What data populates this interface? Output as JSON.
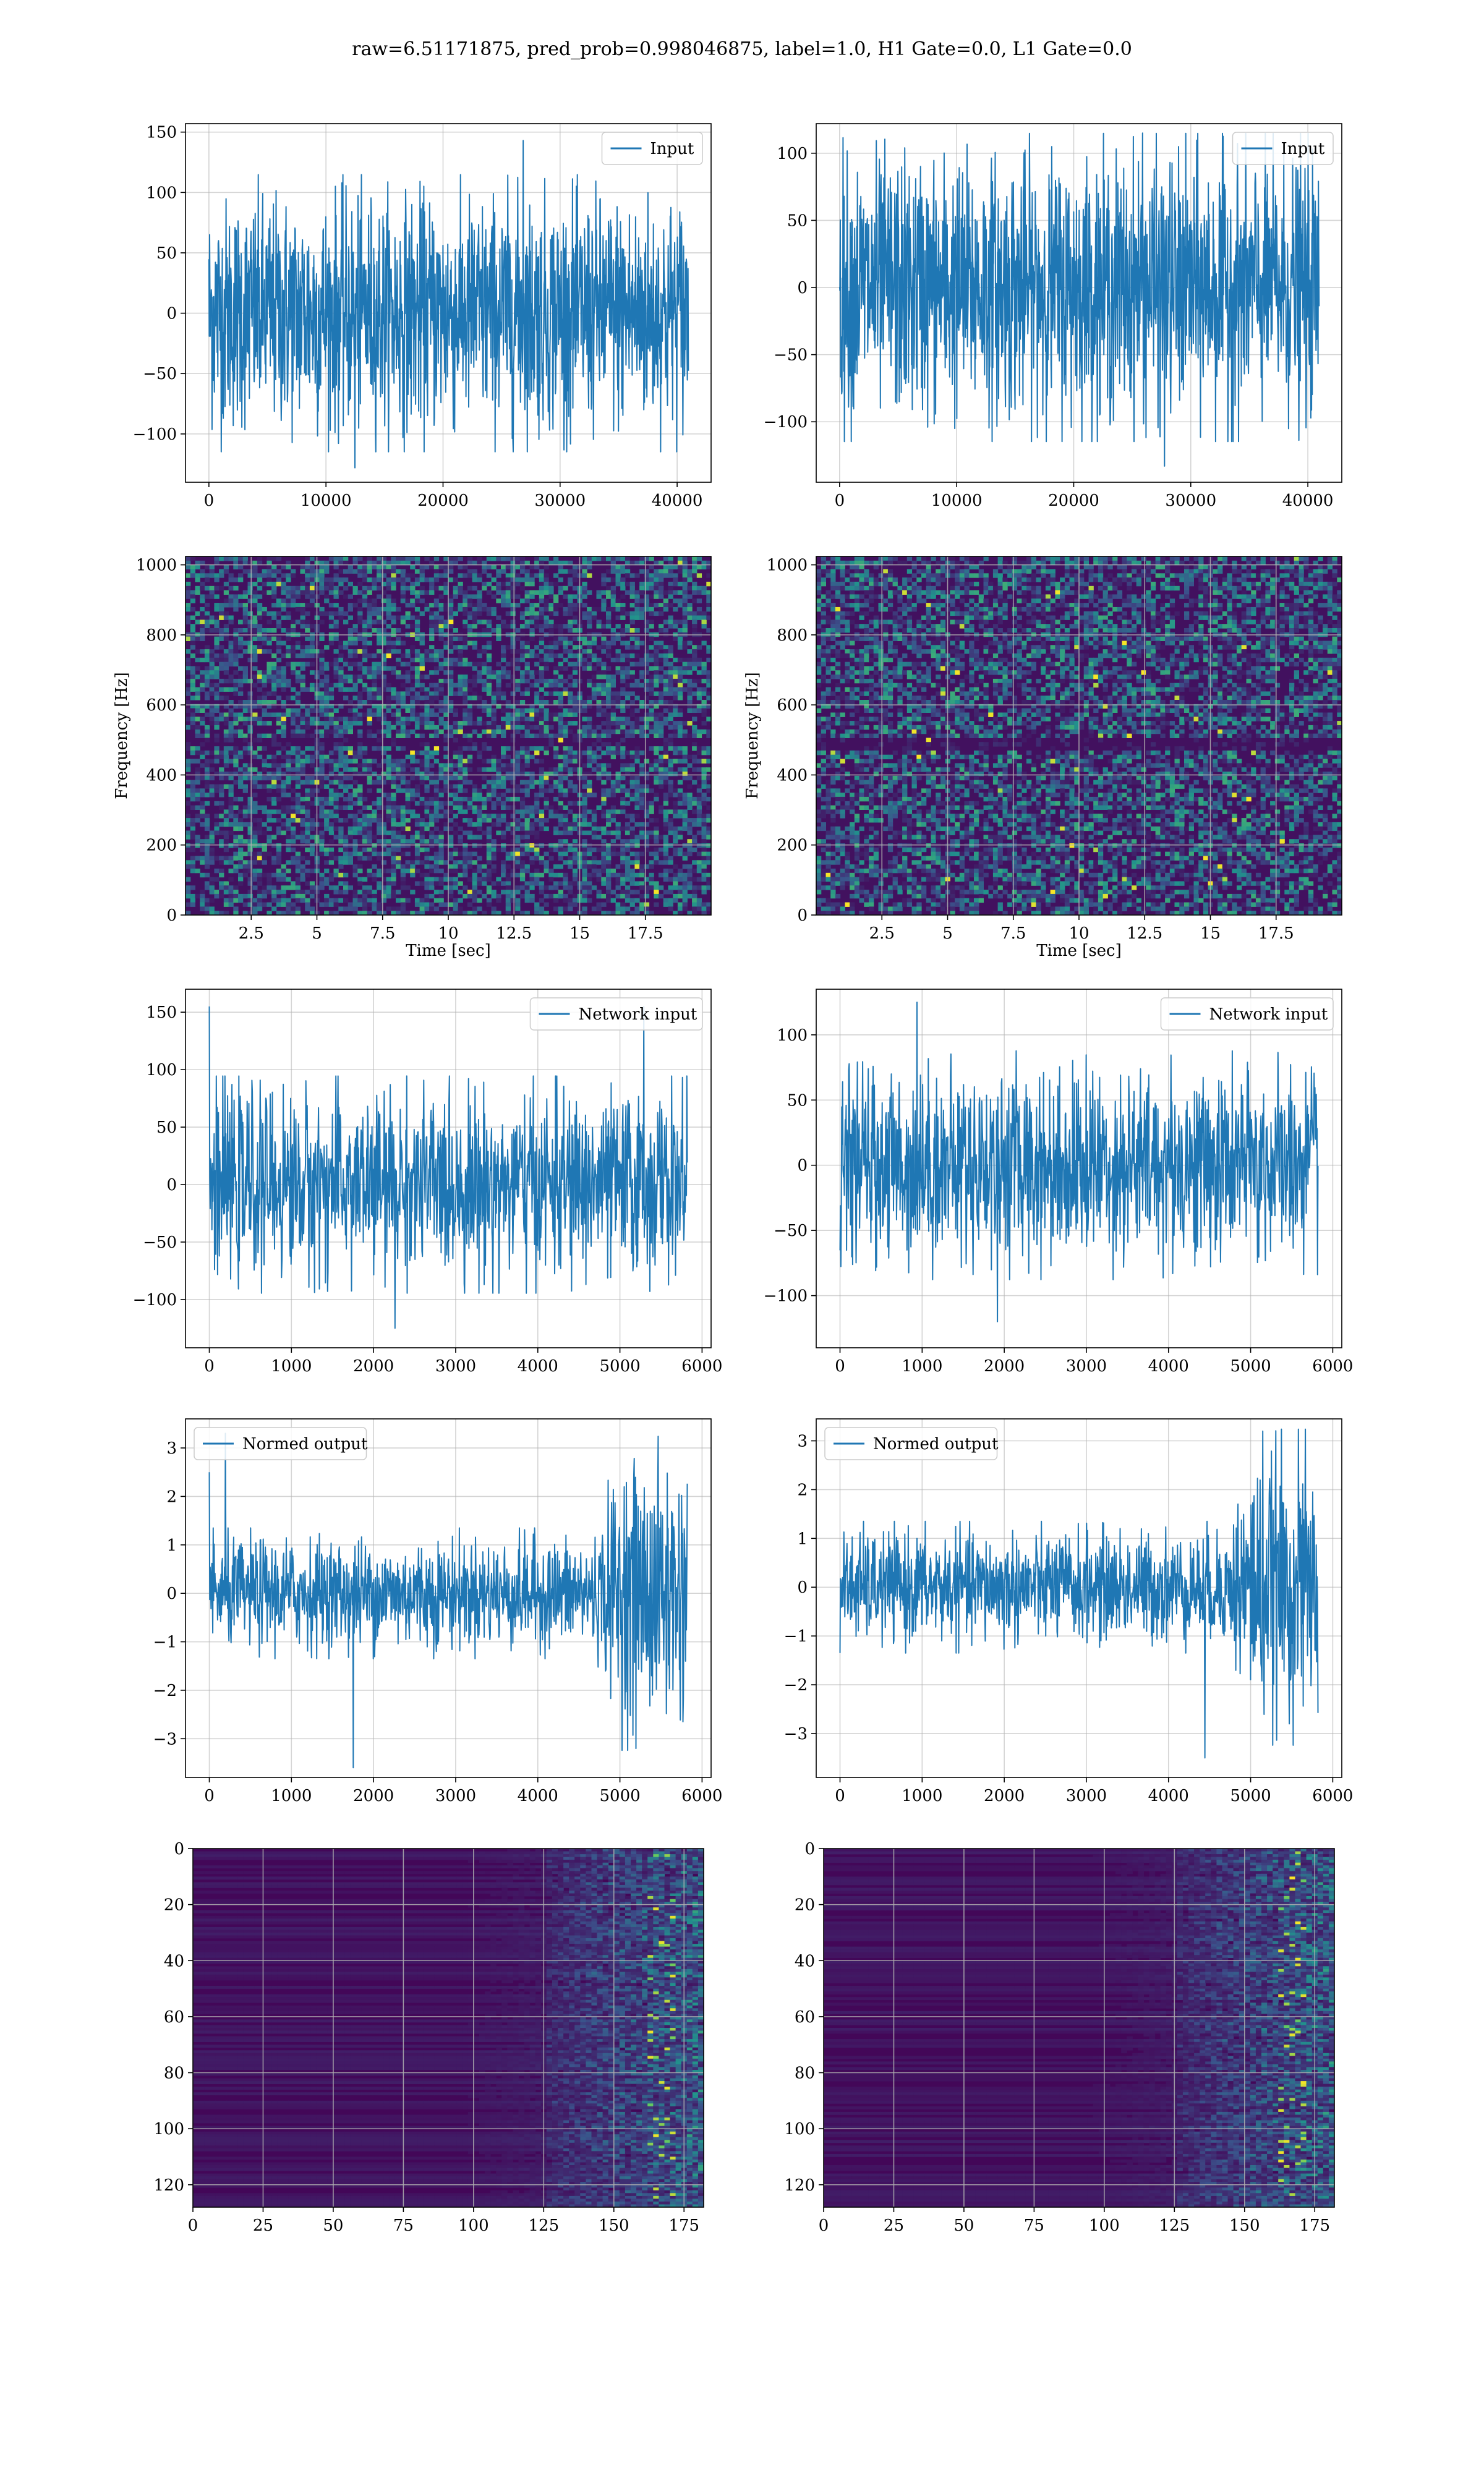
{
  "figure_title": "raw=6.51171875, pred_prob=0.998046875, label=1.0, H1 Gate=0.0, L1 Gate=0.0",
  "colors": {
    "series": "#1f77b4",
    "grid": "#b0b0b0",
    "viridis_low": "#440154",
    "viridis_mid": "#3b528b",
    "viridis_high": "#fde725"
  },
  "chart_data": [
    {
      "id": "input-h1",
      "type": "line",
      "title": "",
      "xlabel": "",
      "ylabel": "",
      "legend": {
        "labels": [
          "Input"
        ],
        "placement": "top-right"
      },
      "grid": true,
      "xlim": [
        -2000,
        42900
      ],
      "ylim": [
        -140,
        157
      ],
      "xticks": [
        0,
        10000,
        20000,
        30000,
        40000
      ],
      "yticks": [
        -100,
        -50,
        0,
        50,
        100,
        150
      ],
      "series": [
        {
          "name": "Input",
          "x_range": [
            0,
            40960
          ],
          "n_points": 1400,
          "envelope_upper": 85,
          "envelope_lower": -85,
          "peak_max": 143,
          "peak_min": -128
        }
      ]
    },
    {
      "id": "input-l1",
      "type": "line",
      "title": "",
      "xlabel": "",
      "ylabel": "",
      "legend": {
        "labels": [
          "Input"
        ],
        "placement": "top-right"
      },
      "grid": true,
      "xlim": [
        -2000,
        42900
      ],
      "ylim": [
        -145,
        122
      ],
      "xticks": [
        0,
        10000,
        20000,
        30000,
        40000
      ],
      "yticks": [
        -100,
        -50,
        0,
        50,
        100
      ],
      "series": [
        {
          "name": "Input",
          "x_range": [
            0,
            40960
          ],
          "n_points": 1400,
          "envelope_upper": 85,
          "envelope_lower": -85,
          "peak_max": 115,
          "peak_min": -133
        }
      ]
    },
    {
      "id": "spec-h1",
      "type": "heatmap",
      "title": "",
      "xlabel": "Time [sec]",
      "ylabel": "Frequency [Hz]",
      "grid": true,
      "xlim": [
        0,
        20
      ],
      "ylim": [
        0,
        1024
      ],
      "xticks": [
        2.5,
        5.0,
        7.5,
        10.0,
        12.5,
        15.0,
        17.5
      ],
      "yticks": [
        0,
        200,
        400,
        600,
        800,
        1000
      ],
      "colormap": "viridis",
      "band_dark_hz": [
        480,
        510
      ]
    },
    {
      "id": "spec-l1",
      "type": "heatmap",
      "title": "",
      "xlabel": "Time [sec]",
      "ylabel": "Frequency [Hz]",
      "grid": true,
      "xlim": [
        0,
        20
      ],
      "ylim": [
        0,
        1024
      ],
      "xticks": [
        2.5,
        5.0,
        7.5,
        10.0,
        12.5,
        15.0,
        17.5
      ],
      "yticks": [
        0,
        200,
        400,
        600,
        800,
        1000
      ],
      "colormap": "viridis",
      "band_dark_hz": [
        470,
        510
      ]
    },
    {
      "id": "netinput-h1",
      "type": "line",
      "title": "",
      "xlabel": "",
      "ylabel": "",
      "legend": {
        "labels": [
          "Network input"
        ],
        "placement": "top-right"
      },
      "grid": true,
      "xlim": [
        -290,
        6110
      ],
      "ylim": [
        -142,
        170
      ],
      "xticks": [
        0,
        1000,
        2000,
        3000,
        4000,
        5000,
        6000
      ],
      "yticks": [
        -100,
        -50,
        0,
        50,
        100,
        150
      ],
      "series": [
        {
          "name": "Network input",
          "x_range": [
            0,
            5820
          ],
          "n_points": 1100,
          "envelope_upper": 70,
          "envelope_lower": -70,
          "peak_max": 155,
          "peak_min": -125
        }
      ]
    },
    {
      "id": "netinput-l1",
      "type": "line",
      "title": "",
      "xlabel": "",
      "ylabel": "",
      "legend": {
        "labels": [
          "Network input"
        ],
        "placement": "top-right"
      },
      "grid": true,
      "xlim": [
        -290,
        6110
      ],
      "ylim": [
        -140,
        135
      ],
      "xticks": [
        0,
        1000,
        2000,
        3000,
        4000,
        5000,
        6000
      ],
      "yticks": [
        -100,
        -50,
        0,
        50,
        100
      ],
      "series": [
        {
          "name": "Network input",
          "x_range": [
            0,
            5820
          ],
          "n_points": 1100,
          "envelope_upper": 65,
          "envelope_lower": -65,
          "peak_max": 125,
          "peak_min": -120
        }
      ]
    },
    {
      "id": "normed-h1",
      "type": "line",
      "title": "",
      "xlabel": "",
      "ylabel": "",
      "legend": {
        "labels": [
          "Normed output"
        ],
        "placement": "top-left"
      },
      "grid": true,
      "xlim": [
        -290,
        6110
      ],
      "ylim": [
        -3.8,
        3.6
      ],
      "xticks": [
        0,
        1000,
        2000,
        3000,
        4000,
        5000,
        6000
      ],
      "yticks": [
        -3,
        -2,
        -1,
        0,
        1,
        2,
        3
      ],
      "series": [
        {
          "name": "Normed output",
          "x_range": [
            0,
            5820
          ],
          "n_points": 1100,
          "envelope_upper": 1.0,
          "envelope_lower": -1.0,
          "burst_range": [
            4700,
            5820
          ],
          "burst_amp": 2.4,
          "peak_max": 3.3,
          "peak_min": -3.6
        }
      ]
    },
    {
      "id": "normed-l1",
      "type": "line",
      "title": "",
      "xlabel": "",
      "ylabel": "",
      "legend": {
        "labels": [
          "Normed output"
        ],
        "placement": "top-left"
      },
      "grid": true,
      "xlim": [
        -290,
        6110
      ],
      "ylim": [
        -3.9,
        3.45
      ],
      "xticks": [
        0,
        1000,
        2000,
        3000,
        4000,
        5000,
        6000
      ],
      "yticks": [
        -3,
        -2,
        -1,
        0,
        1,
        2,
        3
      ],
      "series": [
        {
          "name": "Normed output",
          "x_range": [
            0,
            5820
          ],
          "n_points": 1100,
          "envelope_upper": 1.0,
          "envelope_lower": -1.0,
          "burst_range": [
            4700,
            5820
          ],
          "burst_amp": 2.4,
          "peak_max": 3.2,
          "peak_min": -3.5
        }
      ]
    },
    {
      "id": "feat-h1",
      "type": "heatmap",
      "title": "",
      "xlabel": "",
      "ylabel": "",
      "grid": true,
      "xlim": [
        0,
        182
      ],
      "ylim": [
        128,
        0
      ],
      "xticks": [
        0,
        25,
        50,
        75,
        100,
        125,
        150,
        175
      ],
      "yticks": [
        0,
        20,
        40,
        60,
        80,
        100,
        120
      ],
      "colormap": "viridis",
      "rows": 128,
      "cols": 182,
      "active_from_col": 125
    },
    {
      "id": "feat-l1",
      "type": "heatmap",
      "title": "",
      "xlabel": "",
      "ylabel": "",
      "grid": true,
      "xlim": [
        0,
        182
      ],
      "ylim": [
        128,
        0
      ],
      "xticks": [
        0,
        25,
        50,
        75,
        100,
        125,
        150,
        175
      ],
      "yticks": [
        0,
        20,
        40,
        60,
        80,
        100,
        120
      ],
      "colormap": "viridis",
      "rows": 128,
      "cols": 182,
      "active_from_col": 125
    }
  ]
}
